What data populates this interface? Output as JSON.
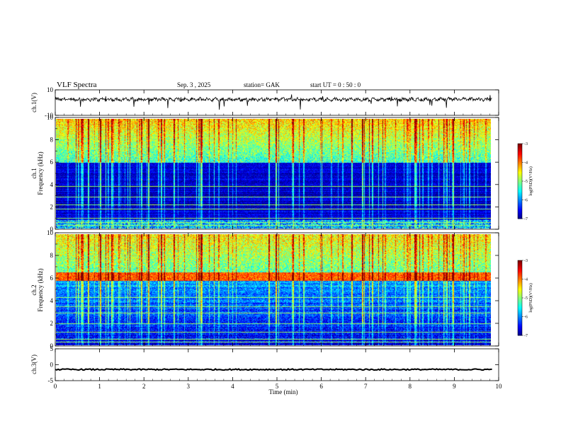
{
  "header": {
    "title": "VLF  Spectra",
    "date": "Sep. 3  , 2025",
    "station": "station= GAK",
    "start": "start  UT  =    0  : 50 : 0"
  },
  "chart_data": [
    {
      "type": "line",
      "id": "ch1-waveform",
      "ylabel": "ch.1(V)",
      "ylim": [
        -10,
        10
      ],
      "yticks": [
        "10",
        "-10"
      ],
      "xlim": [
        0,
        10
      ],
      "description_series": "waveform trace, approx +/-2 V noise around ~3 V offset"
    },
    {
      "type": "heatmap",
      "id": "ch1-spectrogram",
      "ylabel": "ch.1\nFrequency  (kHz)",
      "ylabel_lines": [
        "ch.1",
        "Frequency  (kHz)"
      ],
      "ylim": [
        0,
        10
      ],
      "yticks": [
        "0",
        "2",
        "4",
        "6",
        "8",
        "10"
      ],
      "xlim": [
        0,
        9.85
      ],
      "colorbar": {
        "label": "log(PSD)(V²/Hz)",
        "range": [
          -7,
          -3
        ],
        "ticks": [
          "-3",
          "-4",
          "-5",
          "-6",
          "-7"
        ]
      },
      "cutoff_khz": 6.0,
      "bright_lines_khz": [
        0.3,
        0.6,
        1.0,
        1.8,
        2.2,
        2.9,
        3.9
      ]
    },
    {
      "type": "heatmap",
      "id": "ch2-spectrogram",
      "ylabel_lines": [
        "ch.2",
        "Frequency  (kHz)"
      ],
      "ylim": [
        0,
        10
      ],
      "yticks": [
        "0",
        "2",
        "4",
        "6",
        "8",
        "10"
      ],
      "xlim": [
        0,
        9.85
      ],
      "colorbar": {
        "label": "log(PSD)(V²/Hz)",
        "range": [
          -7,
          -3
        ],
        "ticks": [
          "-3",
          "-4",
          "-5",
          "-6",
          "-7"
        ]
      },
      "band_khz": 6.2,
      "bright_lines_khz": [
        0.3,
        0.6,
        1.2,
        2.0,
        2.9,
        3.5,
        4.3
      ]
    },
    {
      "type": "line",
      "id": "ch3-waveform",
      "ylabel": "ch.3(V)",
      "ylim": [
        -5,
        5
      ],
      "yticks": [
        "5",
        "0",
        "-5"
      ],
      "xlim": [
        0,
        10
      ],
      "level_v": -1.5
    }
  ],
  "xaxis": {
    "label": "Time  (min)",
    "range": [
      0,
      10
    ],
    "ticks": [
      "0",
      "1",
      "2",
      "3",
      "4",
      "5",
      "6",
      "7",
      "8",
      "9",
      "10"
    ]
  }
}
